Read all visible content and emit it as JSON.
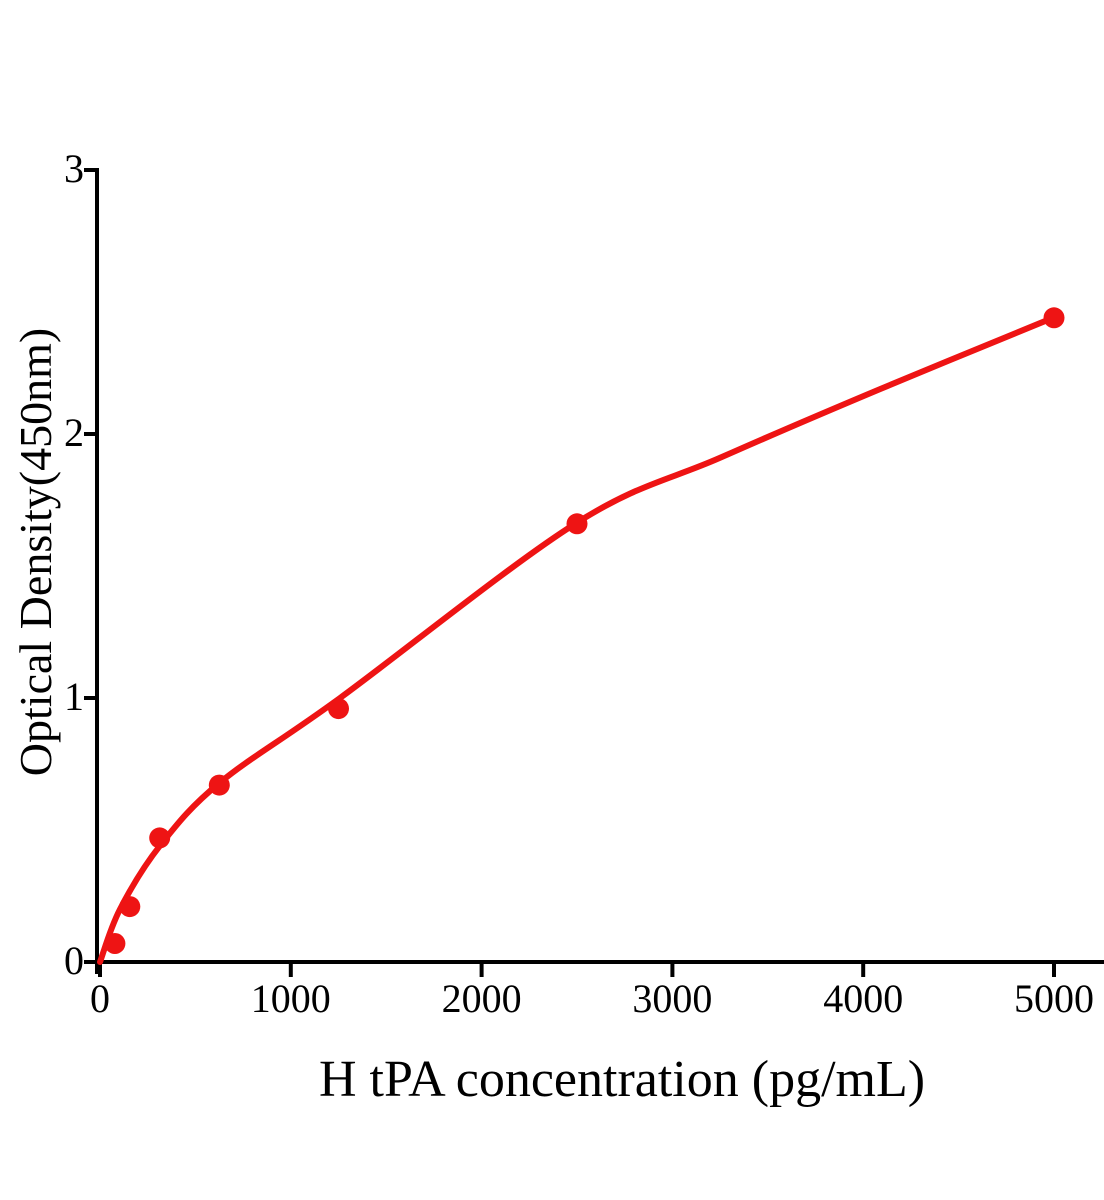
{
  "colors": {
    "curve": "#ee1414",
    "marker": "#ee1414",
    "axis": "#000000",
    "background": "#ffffff"
  },
  "chart_data": {
    "type": "scatter",
    "title": "",
    "xlabel": "H tPA concentration (pg/mL)",
    "ylabel": "Optical Density(450nm)",
    "xlim": [
      0,
      5265
    ],
    "ylim": [
      0,
      3
    ],
    "grid": false,
    "legend": "none",
    "x_ticks": {
      "values": [
        0,
        1000,
        2000,
        3000,
        4000,
        5000
      ],
      "labels": [
        "0",
        "1000",
        "2000",
        "3000",
        "4000",
        "5000"
      ]
    },
    "y_ticks": {
      "values": [
        0,
        1,
        2,
        3
      ],
      "labels": [
        "0",
        "1",
        "2",
        "3"
      ]
    },
    "series": [
      {
        "name": "standard-points",
        "type": "scatter",
        "marker": "circle",
        "color": "#ee1414",
        "points": [
          [
            78,
            0.07
          ],
          [
            156,
            0.21
          ],
          [
            313,
            0.47
          ],
          [
            625,
            0.67
          ],
          [
            1250,
            0.96
          ],
          [
            2500,
            1.66
          ],
          [
            5000,
            2.44
          ]
        ]
      },
      {
        "name": "fit-curve",
        "type": "line",
        "color": "#ee1414",
        "points": [
          [
            0,
            0.0
          ],
          [
            105,
            0.2
          ],
          [
            314,
            0.44
          ],
          [
            629,
            0.68
          ],
          [
            1258,
            1.0
          ],
          [
            2490,
            1.66
          ],
          [
            3250,
            1.91
          ],
          [
            4088,
            2.17
          ],
          [
            4995,
            2.44
          ]
        ]
      }
    ]
  }
}
